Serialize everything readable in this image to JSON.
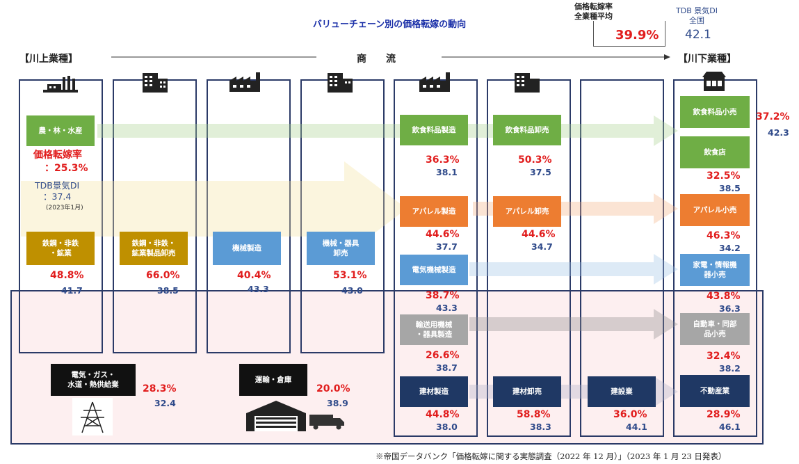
{
  "title": "バリューチェーン別の価格転嫁の動向",
  "overall": {
    "label_line1": "価格転嫁率",
    "label_line2": "全業種平均",
    "value": "39.9%"
  },
  "di_overall": {
    "label_line1": "TDB 景気DI",
    "label_line2": "全国",
    "value": "42.1"
  },
  "flow": {
    "upstream": "【川上業種】",
    "middle": "商　　流",
    "downstream": "【川下業種】"
  },
  "agri_note": {
    "rate_line1": "価格転嫁率",
    "rate_line2": "：25.3%",
    "di_line1": "TDB景気DI",
    "di_line2": "：37.4",
    "date": "(2023年1月)"
  },
  "sectors": {
    "agri": {
      "label": "農・林・水産"
    },
    "steel": {
      "label_l1": "鉄鋼・非鉄",
      "label_l2": "・鉱業",
      "pct": "48.8%",
      "di": "41.7"
    },
    "steel_ws": {
      "label_l1": "鉄鋼・非鉄・",
      "label_l2": "鉱業製品卸売",
      "pct": "66.0%",
      "di": "38.5"
    },
    "machine_mfg": {
      "label": "機械製造",
      "pct": "40.4%",
      "di": "43.3"
    },
    "machine_ws": {
      "label_l1": "機械・器具",
      "label_l2": "卸売",
      "pct": "53.1%",
      "di": "43.0"
    },
    "food_mfg": {
      "label": "飲食料品製造",
      "pct": "36.3%",
      "di": "38.1"
    },
    "food_ws": {
      "label": "飲食料品卸売",
      "pct": "50.3%",
      "di": "37.5"
    },
    "food_retail": {
      "label": "飲食料品小売",
      "pct": "37.2%",
      "di": "42.3"
    },
    "restaurant": {
      "label": "飲食店",
      "pct": "32.5%",
      "di": "38.5"
    },
    "apparel_mfg": {
      "label": "アパレル製造",
      "pct": "44.6%",
      "di": "37.7"
    },
    "apparel_ws": {
      "label": "アパレル卸売",
      "pct": "44.6%",
      "di": "34.7"
    },
    "apparel_retail": {
      "label": "アパレル小売",
      "pct": "46.3%",
      "di": "34.2"
    },
    "elec_mfg": {
      "label": "電気機械製造",
      "pct": "38.7%",
      "di": "43.3"
    },
    "elec_retail": {
      "label_l1": "家電・情報機",
      "label_l2": "器小売",
      "pct": "43.8%",
      "di": "36.3"
    },
    "transport_mfg": {
      "label_l1": "輸送用機械",
      "label_l2": "・器具製造",
      "pct": "26.6%",
      "di": "38.7"
    },
    "auto_retail": {
      "label_l1": "自動車・同部",
      "label_l2": "品小売",
      "pct": "32.4%",
      "di": "38.2"
    },
    "build_mfg": {
      "label": "建材製造",
      "pct": "44.8%",
      "di": "38.0"
    },
    "build_ws": {
      "label": "建材卸売",
      "pct": "58.8%",
      "di": "38.3"
    },
    "construction": {
      "label": "建設業",
      "pct": "36.0%",
      "di": "44.1"
    },
    "realestate": {
      "label": "不動産業",
      "pct": "28.9%",
      "di": "46.1"
    },
    "utility": {
      "label_l1": "電気・ガス・",
      "label_l2": "水道・熱供給業",
      "pct": "28.3%",
      "di": "32.4"
    },
    "logistics": {
      "label": "運輸・倉庫",
      "pct": "20.0%",
      "di": "38.9"
    }
  },
  "colors": {
    "green": "#6fae45",
    "orange": "#ed7d31",
    "blue": "#5b9bd5",
    "gray": "#a6a6a6",
    "navy": "#1f3864",
    "gold": "#bf9000",
    "rate": "#e11d1d",
    "di": "#2f4a8a"
  },
  "icons": [
    "factory-plant-icon",
    "office-building-icon",
    "factory-icon",
    "shop-icon",
    "power-tower-icon",
    "warehouse-icon",
    "truck-icon"
  ],
  "footer": "※帝国データバンク「価格転嫁に関する実態調査（2022 年 12 月）」（2023 年 1 月 23 日発表）"
}
